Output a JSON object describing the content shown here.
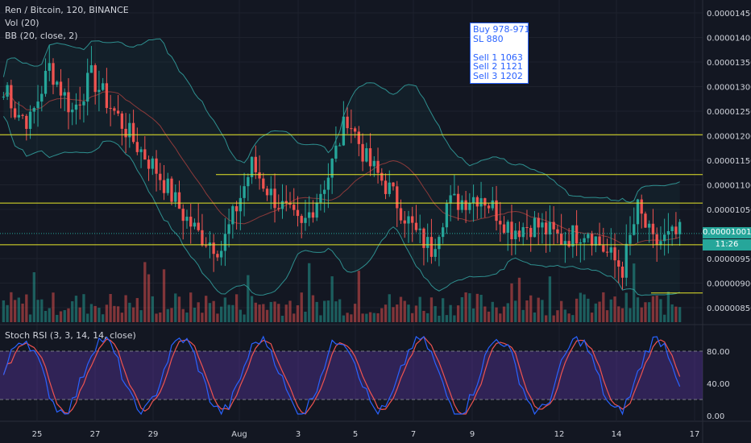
{
  "header": {
    "symbol_line": "Ren / Bitcoin, 120, BINANCE",
    "vol_line": "Vol (20)",
    "bb_line": "BB (20, close, 2)",
    "stoch_line": "Stoch RSI (3, 3, 14, 14, close)"
  },
  "note": {
    "lines": [
      "Buy 978-971",
      "SL 880",
      "",
      "Sell 1 1063",
      "Sell 2 1121",
      "Sell 3 1202"
    ]
  },
  "price_tags": {
    "last_price": "0.00001001",
    "countdown": "11:26"
  },
  "colors": {
    "background": "#131722",
    "up": "#26a69a",
    "down": "#ef5350",
    "level_line": "#e8e829",
    "bb_band": "#2e8f8f",
    "bb_basis": "#8c3a3a",
    "stoch_k": "#2962ff",
    "stoch_d": "#ef5350",
    "stoch_band": "#4a2a7a"
  },
  "chart_data": [
    {
      "type": "candlestick",
      "title": "Ren / Bitcoin, 120, BINANCE",
      "y_axis_ticks": [
        "0.00001450",
        "0.00001400",
        "0.00001350",
        "0.00001300",
        "0.00001250",
        "0.00001200",
        "0.00001150",
        "0.00001100",
        "0.00001050",
        "0.00000950",
        "0.00000900",
        "0.00000850"
      ],
      "ylim": [
        8.2e-06,
        1.47e-05
      ],
      "x_axis_ticks": [
        "25",
        "27",
        "29",
        "Aug",
        "3",
        "5",
        "7",
        "9",
        "12",
        "14",
        "17"
      ],
      "last_price": 1.001e-05,
      "horizontal_levels": [
        1.202e-05,
        1.121e-05,
        1.063e-05,
        1.001e-05,
        9.78e-06,
        8.8e-06
      ],
      "anchors": {
        "x": [
          0,
          1,
          3,
          7,
          12,
          18,
          23,
          28,
          34,
          40,
          47,
          51,
          57,
          65,
          70,
          78,
          85,
          90,
          95,
          101,
          108,
          112,
          116,
          125,
          133,
          139,
          146,
          153,
          158,
          162,
          166,
          170,
          177
        ],
        "close": [
          1.28e-05,
          1.3e-05,
          1.25e-05,
          1.23e-05,
          1.34e-05,
          1.25e-05,
          1.32e-05,
          1.26e-05,
          1.19e-05,
          1.13e-05,
          1.04e-05,
          1e-05,
          9.7e-06,
          1.14e-05,
          1.08e-05,
          1.01e-05,
          1.12e-05,
          1.24e-05,
          1.15e-05,
          1.09e-05,
          1e-05,
          9.7e-06,
          1.06e-05,
          1.08e-05,
          1.01e-05,
          1.02e-05,
          9.9e-06,
          1.01e-05,
          9.6e-06,
          9.3e-06,
          1.05e-05,
          9.8e-06,
          1e-05
        ]
      }
    },
    {
      "type": "bar",
      "title": "Vol (20)"
    },
    {
      "type": "line",
      "title": "Stoch RSI (3, 3, 14, 14, close)",
      "y_axis_ticks": [
        "80.00",
        "40.00",
        "0.00"
      ],
      "ylim": [
        0,
        100
      ],
      "upper_band": 80,
      "lower_band": 20
    }
  ]
}
